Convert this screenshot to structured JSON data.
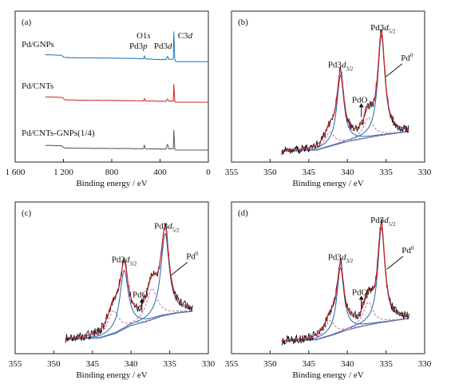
{
  "chart_data": [
    {
      "panel": "(a)",
      "type": "line",
      "xlabel": "Binding energy / eV",
      "xlim": [
        1600,
        0
      ],
      "xticks": [
        1600,
        1200,
        800,
        400,
        0
      ],
      "xtick_labels": [
        "1 600",
        "1 200",
        "800",
        "400",
        "0"
      ],
      "y_ticks_visible": false,
      "grid": false,
      "annotations": [
        {
          "label": [
            "O1",
            "s"
          ],
          "x": 530
        },
        {
          "label": [
            "Pd3",
            "p"
          ],
          "x": 560
        },
        {
          "label": [
            "Pd3",
            "d"
          ],
          "x": 336
        },
        {
          "label": [
            "C3",
            "d"
          ],
          "x": 285
        }
      ],
      "series": [
        {
          "name": "Pd/GNPs",
          "color": "#1f77b4",
          "points": [
            [
              1350,
              0.3
            ],
            [
              1300,
              0.28
            ],
            [
              1250,
              0.27
            ],
            [
              1215,
              0.26
            ],
            [
              1195,
              0.14
            ],
            [
              1100,
              0.12
            ],
            [
              1000,
              0.11
            ],
            [
              900,
              0.11
            ],
            [
              800,
              0.1
            ],
            [
              700,
              0.09
            ],
            [
              600,
              0.08
            ],
            [
              535,
              0.06
            ],
            [
              530,
              0.24
            ],
            [
              525,
              0.06
            ],
            [
              500,
              0.05
            ],
            [
              450,
              0.03
            ],
            [
              400,
              0.02
            ],
            [
              350,
              0.02
            ],
            [
              340,
              0.2
            ],
            [
              335,
              0.22
            ],
            [
              330,
              0.05
            ],
            [
              300,
              0.02
            ],
            [
              290,
              0.1
            ],
            [
              285,
              2.0
            ],
            [
              280,
              0.08
            ],
            [
              270,
              -0.1
            ],
            [
              0,
              -0.1
            ]
          ]
        },
        {
          "name": "Pd/CNTs",
          "color": "#d62728",
          "points": [
            [
              1350,
              0.28
            ],
            [
              1300,
              0.27
            ],
            [
              1250,
              0.26
            ],
            [
              1210,
              0.25
            ],
            [
              1190,
              0.1
            ],
            [
              1100,
              0.08
            ],
            [
              1000,
              0.07
            ],
            [
              900,
              0.06
            ],
            [
              800,
              0.06
            ],
            [
              700,
              0.05
            ],
            [
              600,
              0.04
            ],
            [
              535,
              0.03
            ],
            [
              530,
              0.2
            ],
            [
              525,
              0.03
            ],
            [
              450,
              0.02
            ],
            [
              400,
              0.01
            ],
            [
              350,
              0.01
            ],
            [
              340,
              0.15
            ],
            [
              335,
              0.16
            ],
            [
              330,
              0.03
            ],
            [
              290,
              0.02
            ],
            [
              285,
              1.35
            ],
            [
              280,
              0.03
            ],
            [
              270,
              -0.05
            ],
            [
              0,
              -0.05
            ]
          ]
        },
        {
          "name": "Pd/CNTs-GNPs(1/4)",
          "color": "#555555",
          "points": [
            [
              1350,
              0.25
            ],
            [
              1300,
              0.24
            ],
            [
              1250,
              0.23
            ],
            [
              1215,
              0.22
            ],
            [
              1195,
              0.08
            ],
            [
              1100,
              0.07
            ],
            [
              1000,
              0.06
            ],
            [
              900,
              0.06
            ],
            [
              800,
              0.05
            ],
            [
              700,
              0.05
            ],
            [
              600,
              0.04
            ],
            [
              535,
              0.03
            ],
            [
              530,
              0.28
            ],
            [
              525,
              0.03
            ],
            [
              450,
              0.02
            ],
            [
              400,
              0.02
            ],
            [
              350,
              0.02
            ],
            [
              340,
              0.3
            ],
            [
              335,
              0.32
            ],
            [
              330,
              0.04
            ],
            [
              290,
              0.04
            ],
            [
              285,
              1.5
            ],
            [
              280,
              0.04
            ],
            [
              270,
              -0.05
            ],
            [
              0,
              -0.05
            ]
          ]
        }
      ]
    },
    {
      "panel": "(b)",
      "type": "line",
      "xlabel": "Binding energy / eV",
      "xlim": [
        355,
        330
      ],
      "xticks": [
        355,
        350,
        345,
        340,
        335,
        330
      ],
      "y_ticks_visible": false,
      "grid": false,
      "annotations": [
        {
          "label": [
            "Pd3",
            "d",
            "3/2"
          ],
          "x": 340.9
        },
        {
          "label": [
            "Pd3",
            "d",
            "5/2"
          ],
          "x": 335.6
        },
        {
          "label": [
            "PdO"
          ],
          "x": 338.4
        },
        {
          "label": [
            "Pd",
            "0"
          ],
          "x": 335.8
        }
      ],
      "fit": {
        "x_range": [
          348.5,
          332.0
        ],
        "background": [
          [
            348.5,
            0.08
          ],
          [
            344,
            0.1
          ],
          [
            342,
            0.16
          ],
          [
            340,
            0.22
          ],
          [
            338,
            0.26
          ],
          [
            336,
            0.3
          ],
          [
            334,
            0.33
          ],
          [
            332,
            0.36
          ]
        ],
        "peaks": [
          {
            "role": "Pd0 3d3/2",
            "center": 340.9,
            "height": 0.95,
            "fwhm": 1.1,
            "color": "#2166ac"
          },
          {
            "role": "Pd0 3d5/2",
            "center": 335.6,
            "height": 1.4,
            "fwhm": 1.1,
            "color": "#2166ac"
          },
          {
            "role": "PdO 3d3/2",
            "center": 342.3,
            "height": 0.2,
            "fwhm": 1.5,
            "color": "#c06fa0"
          },
          {
            "role": "PdO 3d5/2",
            "center": 337.3,
            "height": 0.28,
            "fwhm": 1.5,
            "color": "#c06fa0"
          }
        ],
        "envelope_color": "#d62728",
        "raw_color": "#111111",
        "ylim": [
          0,
          1.95
        ]
      }
    },
    {
      "panel": "(c)",
      "type": "line",
      "xlabel": "Binding energy / eV",
      "xlim": [
        355,
        330
      ],
      "xticks": [
        355,
        350,
        345,
        340,
        335,
        330
      ],
      "y_ticks_visible": false,
      "grid": false,
      "annotations": [
        {
          "label": [
            "Pd3",
            "d",
            "3/2"
          ],
          "x": 340.9
        },
        {
          "label": [
            "Pd3",
            "d",
            "5/2"
          ],
          "x": 335.6
        },
        {
          "label": [
            "PdO"
          ],
          "x": 338.8
        },
        {
          "label": [
            "Pd",
            "0"
          ],
          "x": 335.6
        }
      ],
      "fit": {
        "x_range": [
          348.5,
          332.0
        ],
        "background": [
          [
            348.5,
            0.12
          ],
          [
            344,
            0.14
          ],
          [
            342,
            0.2
          ],
          [
            340,
            0.3
          ],
          [
            338,
            0.35
          ],
          [
            336,
            0.42
          ],
          [
            334,
            0.46
          ],
          [
            332,
            0.48
          ]
        ],
        "peaks": [
          {
            "role": "Pd0 3d3/2",
            "center": 340.9,
            "height": 0.75,
            "fwhm": 1.3,
            "color": "#2166ac"
          },
          {
            "role": "Pd0 3d5/2",
            "center": 335.6,
            "height": 1.05,
            "fwhm": 1.3,
            "color": "#2166ac"
          },
          {
            "role": "PdO 3d3/2",
            "center": 342.3,
            "height": 0.3,
            "fwhm": 1.7,
            "color": "#c06fa0"
          },
          {
            "role": "PdO 3d5/2",
            "center": 337.3,
            "height": 0.4,
            "fwhm": 1.7,
            "color": "#c06fa0"
          }
        ],
        "envelope_color": "#d62728",
        "raw_color": "#111111",
        "ylim": [
          0,
          1.8
        ]
      }
    },
    {
      "panel": "(d)",
      "type": "line",
      "xlabel": "Binding energy / eV",
      "xlim": [
        355,
        330
      ],
      "xticks": [
        355,
        350,
        345,
        340,
        335,
        330
      ],
      "y_ticks_visible": false,
      "grid": false,
      "annotations": [
        {
          "label": [
            "Pd3",
            "d",
            "3/2"
          ],
          "x": 340.9
        },
        {
          "label": [
            "Pd3",
            "d",
            "5/2"
          ],
          "x": 335.6
        },
        {
          "label": [
            "PdO"
          ],
          "x": 338.4
        },
        {
          "label": [
            "Pd",
            "0"
          ],
          "x": 335.7
        }
      ],
      "fit": {
        "x_range": [
          348.5,
          332.0
        ],
        "background": [
          [
            348.5,
            0.1
          ],
          [
            344,
            0.12
          ],
          [
            342,
            0.18
          ],
          [
            340,
            0.25
          ],
          [
            338,
            0.3
          ],
          [
            336,
            0.34
          ],
          [
            334,
            0.37
          ],
          [
            332,
            0.4
          ]
        ],
        "peaks": [
          {
            "role": "Pd0 3d3/2",
            "center": 340.9,
            "height": 0.85,
            "fwhm": 1.1,
            "color": "#2166ac"
          },
          {
            "role": "Pd0 3d5/2",
            "center": 335.6,
            "height": 1.25,
            "fwhm": 1.1,
            "color": "#2166ac"
          },
          {
            "role": "PdO 3d3/2",
            "center": 342.3,
            "height": 0.2,
            "fwhm": 1.5,
            "color": "#c06fa0"
          },
          {
            "role": "PdO 3d5/2",
            "center": 337.3,
            "height": 0.3,
            "fwhm": 1.5,
            "color": "#c06fa0"
          }
        ],
        "envelope_color": "#d62728",
        "raw_color": "#111111",
        "ylim": [
          0,
          1.85
        ]
      }
    }
  ]
}
